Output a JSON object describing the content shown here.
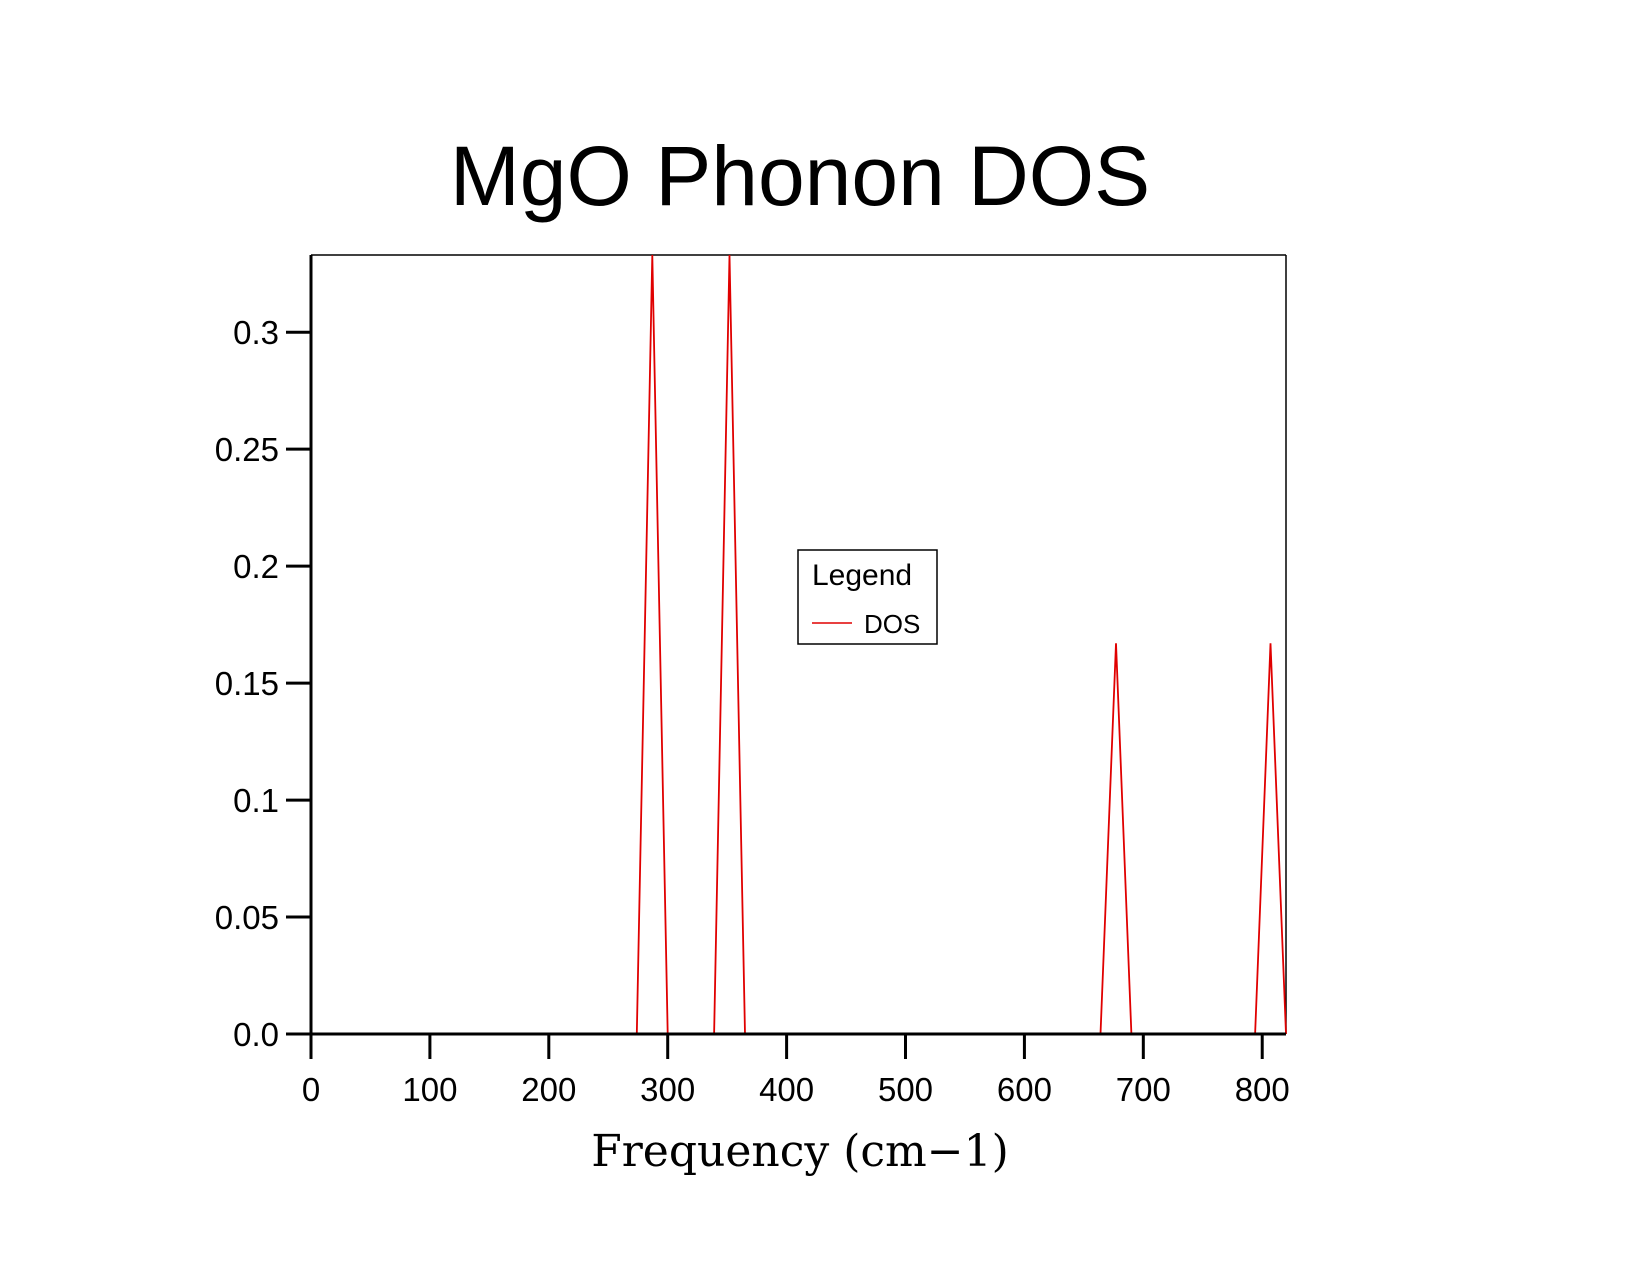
{
  "chart_data": {
    "type": "line",
    "title": "MgO Phonon DOS",
    "xlabel": "Frequency (cm−1)",
    "ylabel": "",
    "xlim": [
      0,
      820
    ],
    "ylim": [
      0,
      0.333
    ],
    "grid": false,
    "x_ticks": [
      0,
      100,
      200,
      300,
      400,
      500,
      600,
      700,
      800
    ],
    "x_tick_labels": [
      "0",
      "100",
      "200",
      "300",
      "400",
      "500",
      "600",
      "700",
      "800"
    ],
    "y_ticks": [
      0,
      0.05,
      0.1,
      0.15,
      0.2,
      0.25,
      0.3
    ],
    "y_tick_labels": [
      "0.0",
      "0.05",
      "0.1",
      "0.15",
      "0.2",
      "0.25",
      "0.3"
    ],
    "legend": {
      "title": "Legend",
      "placement": "center",
      "entries": [
        "DOS"
      ]
    },
    "series": [
      {
        "name": "DOS",
        "color": "#e00000",
        "x": [
          0,
          274,
          287,
          300,
          339,
          352,
          365,
          664,
          677,
          690,
          794,
          807,
          820
        ],
        "y": [
          0,
          0,
          0.333,
          0,
          0,
          0.333,
          0,
          0,
          0.167,
          0,
          0,
          0.167,
          0
        ]
      }
    ]
  }
}
